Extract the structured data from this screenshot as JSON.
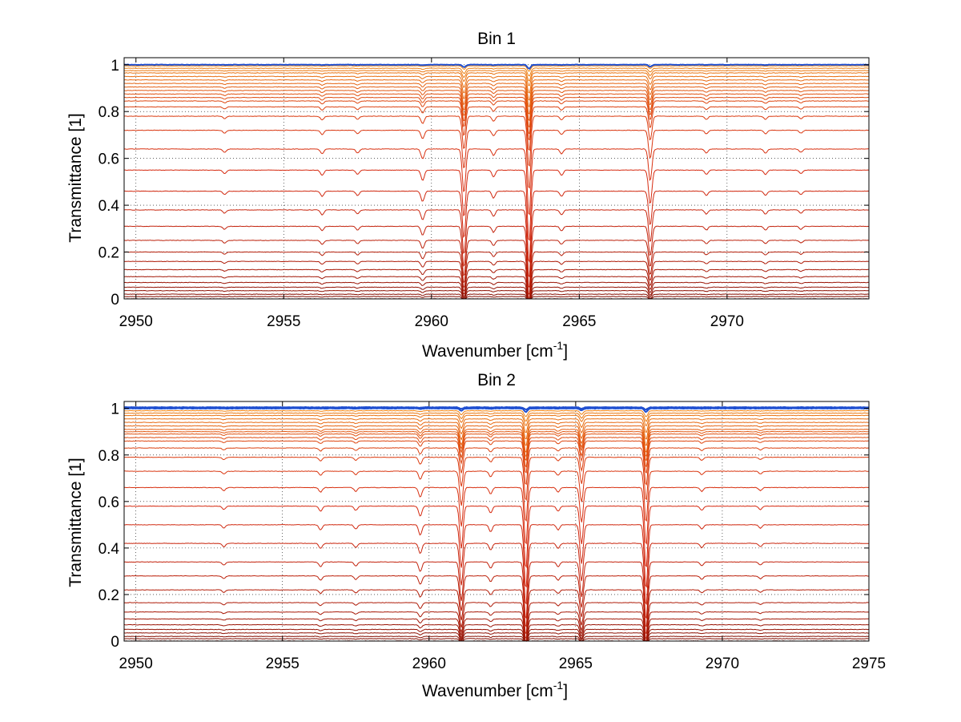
{
  "figure": {
    "background": "#ffffff",
    "grid_color": "#000000",
    "axes_color": "#000000"
  },
  "chart_data": [
    {
      "type": "line",
      "title": "Bin 1",
      "xlabel": "Wavenumber [cm",
      "xlabel_sup": "-1",
      "xlabel_end": "]",
      "ylabel": "Transmittance [1]",
      "xlim": [
        2949.6,
        2974.8
      ],
      "ylim": [
        0,
        1.03
      ],
      "grid": true,
      "xticks": [
        2950,
        2955,
        2960,
        2965,
        2970
      ],
      "xtick_labels": [
        "2950",
        "2955",
        "2960",
        "2965",
        "2970"
      ],
      "yticks": [
        0,
        0.2,
        0.4,
        0.6,
        0.8,
        1
      ],
      "ytick_labels": [
        "0",
        "0.2",
        "0.4",
        "0.6",
        "0.8",
        "1"
      ],
      "series_baselines": [
        0.0,
        0.01,
        0.02,
        0.035,
        0.05,
        0.07,
        0.095,
        0.125,
        0.16,
        0.2,
        0.25,
        0.31,
        0.38,
        0.46,
        0.55,
        0.64,
        0.72,
        0.78,
        0.82,
        0.845,
        0.86,
        0.875,
        0.89,
        0.905,
        0.92,
        0.935,
        0.95,
        0.965,
        0.975,
        0.985,
        0.995,
        1.0
      ],
      "absorption_lines": [
        {
          "center": 2961.1,
          "strength": 0.55
        },
        {
          "center": 2963.3,
          "strength": 0.85
        },
        {
          "center": 2967.4,
          "strength": 0.4
        },
        {
          "center": 2959.7,
          "strength": 0.12
        },
        {
          "center": 2962.1,
          "strength": 0.08
        },
        {
          "center": 2964.4,
          "strength": 0.06
        },
        {
          "center": 2956.3,
          "strength": 0.06
        },
        {
          "center": 2957.5,
          "strength": 0.05
        },
        {
          "center": 2953.0,
          "strength": 0.04
        },
        {
          "center": 2969.3,
          "strength": 0.05
        },
        {
          "center": 2971.3,
          "strength": 0.05
        },
        {
          "center": 2972.5,
          "strength": 0.04
        }
      ],
      "colors": {
        "low": "#7a0a00",
        "mid": "#d62a10",
        "high": "#f08a10",
        "top": "#1f4fd0"
      }
    },
    {
      "type": "line",
      "title": "Bin 2",
      "xlabel": "Wavenumber [cm",
      "xlabel_sup": "-1",
      "xlabel_end": "]",
      "ylabel": "Transmittance [1]",
      "xlim": [
        2949.6,
        2975.0
      ],
      "ylim": [
        0,
        1.03
      ],
      "grid": true,
      "xticks": [
        2950,
        2955,
        2960,
        2965,
        2970,
        2975
      ],
      "xtick_labels": [
        "2950",
        "2955",
        "2960",
        "2965",
        "2970",
        "2975"
      ],
      "yticks": [
        0,
        0.2,
        0.4,
        0.6,
        0.8,
        1
      ],
      "ytick_labels": [
        "0",
        "0.2",
        "0.4",
        "0.6",
        "0.8",
        "1"
      ],
      "series_baselines": [
        0.0,
        0.01,
        0.02,
        0.035,
        0.05,
        0.07,
        0.095,
        0.125,
        0.165,
        0.22,
        0.28,
        0.34,
        0.42,
        0.5,
        0.58,
        0.66,
        0.73,
        0.79,
        0.83,
        0.86,
        0.875,
        0.89,
        0.9,
        0.91,
        0.925,
        0.94,
        0.955,
        0.97,
        0.98,
        0.99,
        1.0,
        1.005
      ],
      "absorption_lines": [
        {
          "center": 2961.1,
          "strength": 0.5
        },
        {
          "center": 2963.3,
          "strength": 0.75
        },
        {
          "center": 2965.2,
          "strength": 0.45
        },
        {
          "center": 2967.4,
          "strength": 0.75
        },
        {
          "center": 2959.7,
          "strength": 0.12
        },
        {
          "center": 2962.1,
          "strength": 0.08
        },
        {
          "center": 2964.4,
          "strength": 0.06
        },
        {
          "center": 2956.3,
          "strength": 0.06
        },
        {
          "center": 2957.5,
          "strength": 0.05
        },
        {
          "center": 2953.0,
          "strength": 0.04
        },
        {
          "center": 2969.3,
          "strength": 0.05
        },
        {
          "center": 2971.3,
          "strength": 0.04
        }
      ],
      "colors": {
        "low": "#7a0a00",
        "mid": "#d62a10",
        "high": "#f08a10",
        "top": "#1f4fd0"
      }
    }
  ]
}
